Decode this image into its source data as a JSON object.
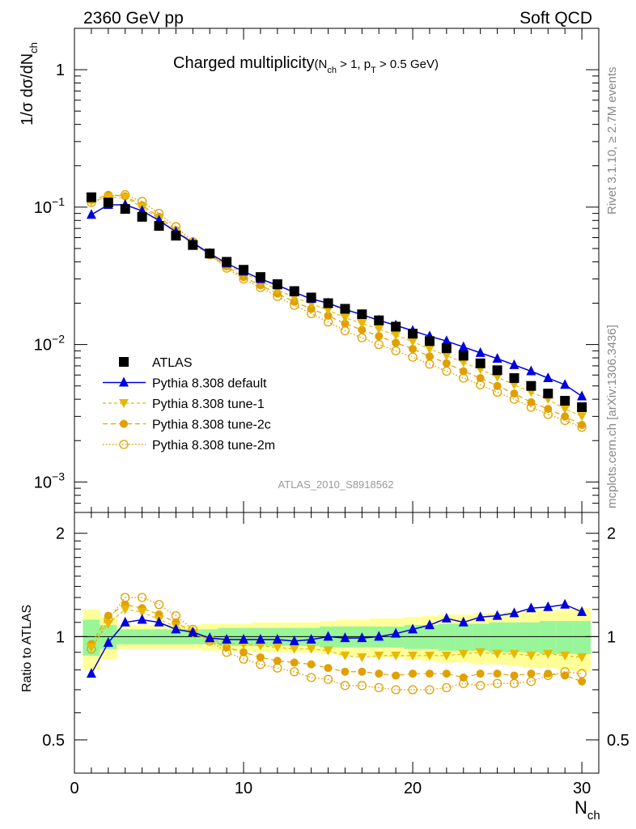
{
  "header": {
    "left": "2360 GeV pp",
    "right": "Soft QCD",
    "title_main": "Charged multiplicity",
    "title_cond": "(N",
    "title_cond_sub1": "ch",
    "title_cond_mid": " > 1, p",
    "title_cond_sub2": "T",
    "title_cond_end": " > 0.5 GeV)"
  },
  "side_labels": {
    "rivet": "Rivet 3.1.10, ≥ 2.7M events",
    "mcplots": "mcplots.cern.ch [arXiv:1306.3436]"
  },
  "watermark": "ATLAS_2010_S8918562",
  "axes": {
    "top_ylabel": "1/σ dσ/dN",
    "top_ylabel_sub": "ch",
    "ratio_ylabel": "Ratio to ATLAS",
    "xlabel": "N",
    "xlabel_sub": "ch",
    "top_ticks": [
      {
        "base": "10",
        "exp": "−3",
        "value": 0.001
      },
      {
        "base": "10",
        "exp": "−2",
        "value": 0.01
      },
      {
        "base": "10",
        "exp": "−1",
        "value": 0.1
      },
      {
        "base": "1",
        "exp": "",
        "value": 1
      }
    ],
    "ratio_ticks": [
      "0.5",
      "1",
      "2"
    ],
    "x_ticks": [
      "0",
      "10",
      "20",
      "30"
    ]
  },
  "legend": [
    {
      "label": "ATLAS",
      "marker": "square",
      "color": "#000000"
    },
    {
      "label": "Pythia 8.308 default",
      "marker": "triangle-up",
      "color": "#0000dd"
    },
    {
      "label": "Pythia 8.308 tune-1",
      "marker": "triangle-down",
      "color": "#e8b800"
    },
    {
      "label": "Pythia 8.308 tune-2c",
      "marker": "circle",
      "color": "#e0a000"
    },
    {
      "label": "Pythia 8.308 tune-2m",
      "marker": "open-circle",
      "color": "#e0a000"
    }
  ],
  "chart_data": {
    "type": "scatter",
    "x": [
      1,
      2,
      3,
      4,
      5,
      6,
      7,
      8,
      9,
      10,
      11,
      12,
      13,
      14,
      15,
      16,
      17,
      18,
      19,
      20,
      21,
      22,
      23,
      24,
      25,
      26,
      27,
      28,
      29,
      30
    ],
    "xlim": [
      0,
      31
    ],
    "top_ylim": [
      0.0006,
      2.0
    ],
    "top_yscale": "log",
    "ratio_ylim": [
      0.4,
      2.3
    ],
    "ratio_yscale": "log",
    "series": [
      {
        "name": "ATLAS",
        "values": [
          0.118,
          0.108,
          0.097,
          0.085,
          0.073,
          0.062,
          0.053,
          0.046,
          0.04,
          0.035,
          0.031,
          0.0275,
          0.0245,
          0.022,
          0.02,
          0.0182,
          0.0166,
          0.015,
          0.0135,
          0.012,
          0.0106,
          0.0094,
          0.0083,
          0.0073,
          0.0065,
          0.0057,
          0.005,
          0.0044,
          0.0039,
          0.0035
        ]
      },
      {
        "name": "Pythia 8.308 default",
        "values": [
          0.088,
          0.104,
          0.104,
          0.094,
          0.08,
          0.066,
          0.055,
          0.046,
          0.039,
          0.034,
          0.03,
          0.027,
          0.024,
          0.0215,
          0.02,
          0.018,
          0.0165,
          0.015,
          0.0138,
          0.0126,
          0.0115,
          0.0106,
          0.0096,
          0.0087,
          0.0079,
          0.0071,
          0.0064,
          0.0057,
          0.0051,
          0.0042
        ]
      },
      {
        "name": "Pythia 8.308 tune-1",
        "values": [
          0.11,
          0.118,
          0.117,
          0.1,
          0.082,
          0.066,
          0.054,
          0.045,
          0.038,
          0.033,
          0.029,
          0.025,
          0.022,
          0.0198,
          0.0178,
          0.0157,
          0.0142,
          0.013,
          0.0117,
          0.0105,
          0.0093,
          0.0083,
          0.0074,
          0.0066,
          0.0058,
          0.0051,
          0.0045,
          0.004,
          0.0034,
          0.003
        ]
      },
      {
        "name": "Pythia 8.308 tune-2c",
        "values": [
          0.112,
          0.123,
          0.12,
          0.103,
          0.085,
          0.068,
          0.055,
          0.045,
          0.037,
          0.031,
          0.027,
          0.0235,
          0.0205,
          0.0182,
          0.0162,
          0.0142,
          0.0128,
          0.0115,
          0.0103,
          0.0093,
          0.0082,
          0.0073,
          0.0064,
          0.0057,
          0.005,
          0.0044,
          0.0038,
          0.0034,
          0.003,
          0.0026
        ]
      },
      {
        "name": "Pythia 8.308 tune-2m",
        "values": [
          0.108,
          0.12,
          0.123,
          0.11,
          0.09,
          0.072,
          0.056,
          0.045,
          0.036,
          0.03,
          0.026,
          0.0224,
          0.0193,
          0.0168,
          0.0146,
          0.0126,
          0.0112,
          0.01,
          0.009,
          0.0081,
          0.0072,
          0.0064,
          0.0057,
          0.0051,
          0.0045,
          0.004,
          0.0035,
          0.0031,
          0.0028,
          0.0025
        ]
      }
    ],
    "ratios": [
      {
        "name": "Pythia 8.308 default",
        "values": [
          0.78,
          0.96,
          1.1,
          1.12,
          1.1,
          1.05,
          1.03,
          0.99,
          0.98,
          0.98,
          0.98,
          0.98,
          0.97,
          0.98,
          1.0,
          0.99,
          0.99,
          1.0,
          1.02,
          1.05,
          1.08,
          1.13,
          1.1,
          1.14,
          1.15,
          1.17,
          1.21,
          1.22,
          1.24,
          1.18
        ]
      },
      {
        "name": "Pythia 8.308 tune-1",
        "values": [
          0.93,
          1.09,
          1.2,
          1.18,
          1.12,
          1.07,
          1.02,
          0.98,
          0.96,
          0.95,
          0.94,
          0.93,
          0.92,
          0.92,
          0.91,
          0.88,
          0.87,
          0.88,
          0.88,
          0.88,
          0.88,
          0.88,
          0.89,
          0.9,
          0.89,
          0.89,
          0.88,
          0.89,
          0.88,
          0.87
        ]
      },
      {
        "name": "Pythia 8.308 tune-2c",
        "values": [
          0.95,
          1.15,
          1.24,
          1.21,
          1.16,
          1.1,
          1.03,
          0.98,
          0.93,
          0.9,
          0.87,
          0.85,
          0.84,
          0.83,
          0.81,
          0.79,
          0.79,
          0.78,
          0.77,
          0.78,
          0.78,
          0.78,
          0.76,
          0.78,
          0.78,
          0.77,
          0.78,
          0.78,
          0.77,
          0.74
        ]
      },
      {
        "name": "Pythia 8.308 tune-2m",
        "values": [
          0.92,
          1.12,
          1.3,
          1.3,
          1.24,
          1.15,
          1.05,
          0.97,
          0.9,
          0.86,
          0.83,
          0.81,
          0.79,
          0.76,
          0.75,
          0.72,
          0.72,
          0.71,
          0.7,
          0.7,
          0.7,
          0.71,
          0.73,
          0.72,
          0.73,
          0.73,
          0.74,
          0.77,
          0.79,
          0.78
        ]
      }
    ],
    "ratio_bands": {
      "inner_half_width": [
        0.12,
        0.08,
        0.05,
        0.05,
        0.05,
        0.05,
        0.05,
        0.05,
        0.06,
        0.06,
        0.06,
        0.06,
        0.06,
        0.06,
        0.07,
        0.07,
        0.07,
        0.07,
        0.07,
        0.08,
        0.08,
        0.09,
        0.09,
        0.09,
        0.1,
        0.1,
        0.1,
        0.11,
        0.11,
        0.11
      ],
      "outer_half_width": [
        0.2,
        0.14,
        0.08,
        0.08,
        0.08,
        0.08,
        0.08,
        0.09,
        0.09,
        0.09,
        0.1,
        0.1,
        0.1,
        0.1,
        0.11,
        0.12,
        0.12,
        0.13,
        0.13,
        0.14,
        0.15,
        0.16,
        0.16,
        0.17,
        0.17,
        0.18,
        0.19,
        0.19,
        0.2,
        0.21
      ]
    }
  }
}
